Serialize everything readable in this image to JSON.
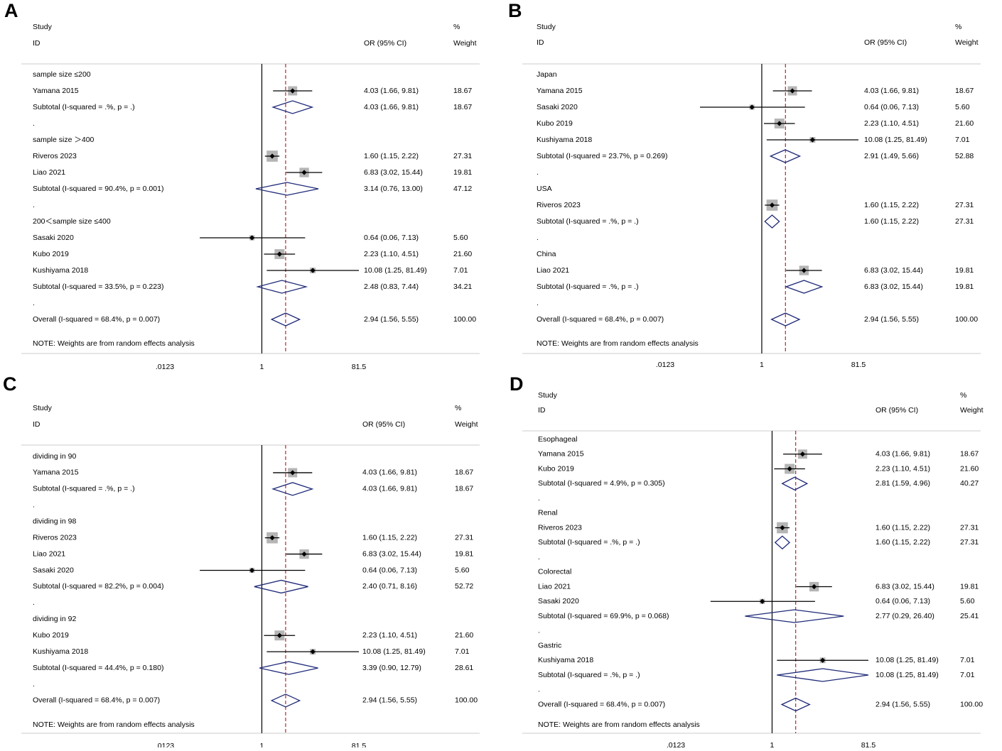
{
  "figure": {
    "labels": {
      "study": "Study",
      "id": "ID",
      "or_ci": "OR (95% CI)",
      "pct": "%",
      "weight": "Weight",
      "note": "NOTE: Weights are from random effects analysis"
    },
    "axis": {
      "ticks": [
        0.0123,
        1,
        81.5
      ],
      "tick_labels": [
        ".0123",
        "1",
        "81.5"
      ],
      "scale": "log",
      "null_line": 1,
      "overall_line": 2.94
    },
    "colors": {
      "diamond": "#1f2a78",
      "overall_line": "#b3263a",
      "square": "#b5b5b5",
      "text": "#000000"
    }
  },
  "chart_data": [
    {
      "panel": "A",
      "type": "forest",
      "axis_ticks": [
        0.0123,
        1,
        81.5
      ],
      "rows": [
        {
          "kind": "group",
          "label": "sample size ≤200"
        },
        {
          "kind": "study",
          "label": "Yamana 2015",
          "or": 4.03,
          "lo": 1.66,
          "hi": 9.81,
          "ci_text": "4.03 (1.66, 9.81)",
          "weight": 18.67,
          "weight_text": "18.67"
        },
        {
          "kind": "subtotal",
          "label": "Subtotal  (I-squared = .%, p = .)",
          "or": 4.03,
          "lo": 1.66,
          "hi": 9.81,
          "ci_text": "4.03 (1.66, 9.81)",
          "weight_text": "18.67"
        },
        {
          "kind": "dot",
          "label": "."
        },
        {
          "kind": "group",
          "label": "sample size ＞400"
        },
        {
          "kind": "study",
          "label": "Riveros 2023",
          "or": 1.6,
          "lo": 1.15,
          "hi": 2.22,
          "ci_text": "1.60 (1.15, 2.22)",
          "weight": 27.31,
          "weight_text": "27.31"
        },
        {
          "kind": "study",
          "label": "Liao 2021",
          "or": 6.83,
          "lo": 3.02,
          "hi": 15.44,
          "ci_text": "6.83 (3.02, 15.44)",
          "weight": 19.81,
          "weight_text": "19.81"
        },
        {
          "kind": "subtotal",
          "label": "Subtotal  (I-squared = 90.4%, p = 0.001)",
          "or": 3.14,
          "lo": 0.76,
          "hi": 13.0,
          "ci_text": "3.14 (0.76, 13.00)",
          "weight_text": "47.12"
        },
        {
          "kind": "dot",
          "label": "."
        },
        {
          "kind": "group",
          "label": "200＜sample size ≤400"
        },
        {
          "kind": "study",
          "label": "Sasaki 2020",
          "or": 0.64,
          "lo": 0.06,
          "hi": 7.13,
          "ci_text": "0.64 (0.06, 7.13)",
          "weight": 5.6,
          "weight_text": "5.60"
        },
        {
          "kind": "study",
          "label": "Kubo 2019",
          "or": 2.23,
          "lo": 1.1,
          "hi": 4.51,
          "ci_text": "2.23 (1.10, 4.51)",
          "weight": 21.6,
          "weight_text": "21.60"
        },
        {
          "kind": "study",
          "label": "Kushiyama 2018",
          "or": 10.08,
          "lo": 1.25,
          "hi": 81.49,
          "ci_text": "10.08 (1.25, 81.49)",
          "weight": 7.01,
          "weight_text": "7.01"
        },
        {
          "kind": "subtotal",
          "label": "Subtotal  (I-squared = 33.5%, p = 0.223)",
          "or": 2.48,
          "lo": 0.83,
          "hi": 7.44,
          "ci_text": "2.48 (0.83, 7.44)",
          "weight_text": "34.21"
        },
        {
          "kind": "dot",
          "label": "."
        },
        {
          "kind": "overall",
          "label": "Overall  (I-squared = 68.4%, p = 0.007)",
          "or": 2.94,
          "lo": 1.56,
          "hi": 5.55,
          "ci_text": "2.94 (1.56, 5.55)",
          "weight_text": "100.00"
        }
      ]
    },
    {
      "panel": "B",
      "type": "forest",
      "axis_ticks": [
        0.0123,
        1,
        81.5
      ],
      "rows": [
        {
          "kind": "group",
          "label": "Japan"
        },
        {
          "kind": "study",
          "label": "Yamana 2015",
          "or": 4.03,
          "lo": 1.66,
          "hi": 9.81,
          "ci_text": "4.03 (1.66, 9.81)",
          "weight": 18.67,
          "weight_text": "18.67"
        },
        {
          "kind": "study",
          "label": "Sasaki 2020",
          "or": 0.64,
          "lo": 0.06,
          "hi": 7.13,
          "ci_text": "0.64 (0.06, 7.13)",
          "weight": 5.6,
          "weight_text": "5.60"
        },
        {
          "kind": "study",
          "label": "Kubo 2019",
          "or": 2.23,
          "lo": 1.1,
          "hi": 4.51,
          "ci_text": "2.23 (1.10, 4.51)",
          "weight": 21.6,
          "weight_text": "21.60"
        },
        {
          "kind": "study",
          "label": "Kushiyama 2018",
          "or": 10.08,
          "lo": 1.25,
          "hi": 81.49,
          "ci_text": "10.08 (1.25, 81.49)",
          "weight": 7.01,
          "weight_text": "7.01"
        },
        {
          "kind": "subtotal",
          "label": "Subtotal  (I-squared = 23.7%, p = 0.269)",
          "or": 2.91,
          "lo": 1.49,
          "hi": 5.66,
          "ci_text": "2.91 (1.49, 5.66)",
          "weight_text": "52.88"
        },
        {
          "kind": "dot",
          "label": "."
        },
        {
          "kind": "group",
          "label": "USA"
        },
        {
          "kind": "study",
          "label": "Riveros 2023",
          "or": 1.6,
          "lo": 1.15,
          "hi": 2.22,
          "ci_text": "1.60 (1.15, 2.22)",
          "weight": 27.31,
          "weight_text": "27.31"
        },
        {
          "kind": "subtotal",
          "label": "Subtotal  (I-squared = .%, p = .)",
          "or": 1.6,
          "lo": 1.15,
          "hi": 2.22,
          "ci_text": "1.60 (1.15, 2.22)",
          "weight_text": "27.31"
        },
        {
          "kind": "dot",
          "label": "."
        },
        {
          "kind": "group",
          "label": "China"
        },
        {
          "kind": "study",
          "label": "Liao 2021",
          "or": 6.83,
          "lo": 3.02,
          "hi": 15.44,
          "ci_text": "6.83 (3.02, 15.44)",
          "weight": 19.81,
          "weight_text": "19.81"
        },
        {
          "kind": "subtotal",
          "label": "Subtotal  (I-squared = .%, p = .)",
          "or": 6.83,
          "lo": 3.02,
          "hi": 15.44,
          "ci_text": "6.83 (3.02, 15.44)",
          "weight_text": "19.81"
        },
        {
          "kind": "dot",
          "label": "."
        },
        {
          "kind": "overall",
          "label": "Overall  (I-squared = 68.4%, p = 0.007)",
          "or": 2.94,
          "lo": 1.56,
          "hi": 5.55,
          "ci_text": "2.94 (1.56, 5.55)",
          "weight_text": "100.00"
        }
      ]
    },
    {
      "panel": "C",
      "type": "forest",
      "axis_ticks": [
        0.0123,
        1,
        81.5
      ],
      "rows": [
        {
          "kind": "group",
          "label": "dividing in 90"
        },
        {
          "kind": "study",
          "label": "Yamana 2015",
          "or": 4.03,
          "lo": 1.66,
          "hi": 9.81,
          "ci_text": "4.03 (1.66, 9.81)",
          "weight": 18.67,
          "weight_text": "18.67"
        },
        {
          "kind": "subtotal",
          "label": "Subtotal  (I-squared = .%, p = .)",
          "or": 4.03,
          "lo": 1.66,
          "hi": 9.81,
          "ci_text": "4.03 (1.66, 9.81)",
          "weight_text": "18.67"
        },
        {
          "kind": "dot",
          "label": "."
        },
        {
          "kind": "group",
          "label": "dividing in 98"
        },
        {
          "kind": "study",
          "label": "Riveros 2023",
          "or": 1.6,
          "lo": 1.15,
          "hi": 2.22,
          "ci_text": "1.60 (1.15, 2.22)",
          "weight": 27.31,
          "weight_text": "27.31"
        },
        {
          "kind": "study",
          "label": "Liao 2021",
          "or": 6.83,
          "lo": 3.02,
          "hi": 15.44,
          "ci_text": "6.83 (3.02, 15.44)",
          "weight": 19.81,
          "weight_text": "19.81"
        },
        {
          "kind": "study",
          "label": "Sasaki 2020",
          "or": 0.64,
          "lo": 0.06,
          "hi": 7.13,
          "ci_text": "0.64 (0.06, 7.13)",
          "weight": 5.6,
          "weight_text": "5.60"
        },
        {
          "kind": "subtotal",
          "label": "Subtotal  (I-squared = 82.2%, p = 0.004)",
          "or": 2.4,
          "lo": 0.71,
          "hi": 8.16,
          "ci_text": "2.40 (0.71, 8.16)",
          "weight_text": "52.72"
        },
        {
          "kind": "dot",
          "label": "."
        },
        {
          "kind": "group",
          "label": "dividing in 92"
        },
        {
          "kind": "study",
          "label": "Kubo 2019",
          "or": 2.23,
          "lo": 1.1,
          "hi": 4.51,
          "ci_text": "2.23 (1.10, 4.51)",
          "weight": 21.6,
          "weight_text": "21.60"
        },
        {
          "kind": "study",
          "label": "Kushiyama 2018",
          "or": 10.08,
          "lo": 1.25,
          "hi": 81.49,
          "ci_text": "10.08 (1.25, 81.49)",
          "weight": 7.01,
          "weight_text": "7.01"
        },
        {
          "kind": "subtotal",
          "label": "Subtotal  (I-squared = 44.4%, p = 0.180)",
          "or": 3.39,
          "lo": 0.9,
          "hi": 12.79,
          "ci_text": "3.39 (0.90, 12.79)",
          "weight_text": "28.61"
        },
        {
          "kind": "dot",
          "label": "."
        },
        {
          "kind": "overall",
          "label": "Overall  (I-squared = 68.4%, p = 0.007)",
          "or": 2.94,
          "lo": 1.56,
          "hi": 5.55,
          "ci_text": "2.94 (1.56, 5.55)",
          "weight_text": "100.00"
        }
      ]
    },
    {
      "panel": "D",
      "type": "forest",
      "axis_ticks": [
        0.0123,
        1,
        81.5
      ],
      "rows": [
        {
          "kind": "group",
          "label": "Esophageal"
        },
        {
          "kind": "study",
          "label": "Yamana 2015",
          "or": 4.03,
          "lo": 1.66,
          "hi": 9.81,
          "ci_text": "4.03 (1.66, 9.81)",
          "weight": 18.67,
          "weight_text": "18.67"
        },
        {
          "kind": "study",
          "label": "Kubo 2019",
          "or": 2.23,
          "lo": 1.1,
          "hi": 4.51,
          "ci_text": "2.23 (1.10, 4.51)",
          "weight": 21.6,
          "weight_text": "21.60"
        },
        {
          "kind": "subtotal",
          "label": "Subtotal  (I-squared = 4.9%, p = 0.305)",
          "or": 2.81,
          "lo": 1.59,
          "hi": 4.96,
          "ci_text": "2.81 (1.59, 4.96)",
          "weight_text": "40.27"
        },
        {
          "kind": "dot",
          "label": "."
        },
        {
          "kind": "group",
          "label": "Renal"
        },
        {
          "kind": "study",
          "label": "Riveros 2023",
          "or": 1.6,
          "lo": 1.15,
          "hi": 2.22,
          "ci_text": "1.60 (1.15, 2.22)",
          "weight": 27.31,
          "weight_text": "27.31"
        },
        {
          "kind": "subtotal",
          "label": "Subtotal  (I-squared = .%, p = .)",
          "or": 1.6,
          "lo": 1.15,
          "hi": 2.22,
          "ci_text": "1.60 (1.15, 2.22)",
          "weight_text": "27.31"
        },
        {
          "kind": "dot",
          "label": "."
        },
        {
          "kind": "group",
          "label": "Colorectal"
        },
        {
          "kind": "study",
          "label": "Liao 2021",
          "or": 6.83,
          "lo": 3.02,
          "hi": 15.44,
          "ci_text": "6.83 (3.02, 15.44)",
          "weight": 19.81,
          "weight_text": "19.81"
        },
        {
          "kind": "study",
          "label": "Sasaki 2020",
          "or": 0.64,
          "lo": 0.06,
          "hi": 7.13,
          "ci_text": "0.64 (0.06, 7.13)",
          "weight": 5.6,
          "weight_text": "5.60"
        },
        {
          "kind": "subtotal",
          "label": "Subtotal  (I-squared = 69.9%, p = 0.068)",
          "or": 2.77,
          "lo": 0.29,
          "hi": 26.4,
          "ci_text": "2.77 (0.29, 26.40)",
          "weight_text": "25.41"
        },
        {
          "kind": "dot",
          "label": "."
        },
        {
          "kind": "group",
          "label": "Gastric"
        },
        {
          "kind": "study",
          "label": "Kushiyama 2018",
          "or": 10.08,
          "lo": 1.25,
          "hi": 81.49,
          "ci_text": "10.08 (1.25, 81.49)",
          "weight": 7.01,
          "weight_text": "7.01"
        },
        {
          "kind": "subtotal",
          "label": "Subtotal  (I-squared = .%, p = .)",
          "or": 10.08,
          "lo": 1.25,
          "hi": 81.49,
          "ci_text": "10.08 (1.25, 81.49)",
          "weight_text": "7.01"
        },
        {
          "kind": "dot",
          "label": "."
        },
        {
          "kind": "overall",
          "label": "Overall  (I-squared = 68.4%, p = 0.007)",
          "or": 2.94,
          "lo": 1.56,
          "hi": 5.55,
          "ci_text": "2.94 (1.56, 5.55)",
          "weight_text": "100.00"
        }
      ]
    }
  ]
}
